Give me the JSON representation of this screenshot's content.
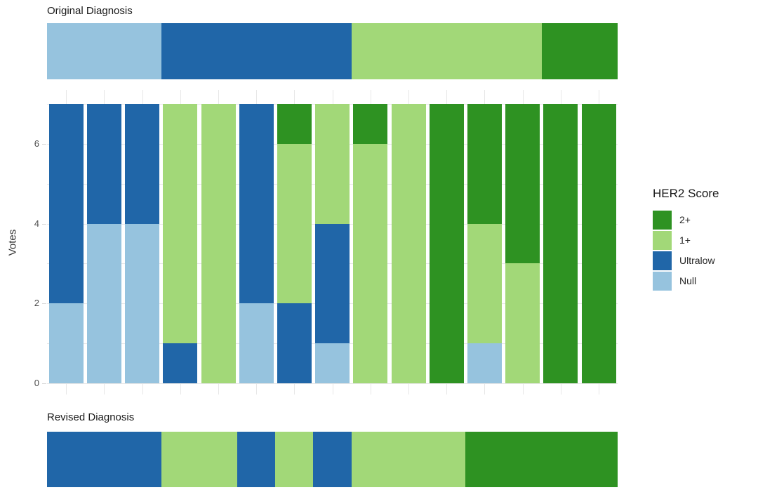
{
  "labels": {
    "original_diagnosis": "Original Diagnosis",
    "revised_diagnosis": "Revised Diagnosis"
  },
  "chart_data": {
    "type": "bar",
    "stacked": true,
    "title": "",
    "xlabel": "",
    "ylabel": "Votes",
    "ylim": [
      0,
      7
    ],
    "yticks": [
      0,
      2,
      4,
      6
    ],
    "grid": true,
    "legend_position": "right",
    "n_cases": 15,
    "votes_per_case": 7,
    "stack_order": [
      "Null",
      "Ultralow",
      "1+",
      "2+"
    ],
    "series": [
      {
        "name": "Null",
        "values": [
          2,
          4,
          4,
          0,
          0,
          2,
          0,
          1,
          0,
          0,
          0,
          1,
          0,
          0,
          0
        ]
      },
      {
        "name": "Ultralow",
        "values": [
          5,
          3,
          3,
          1,
          0,
          5,
          2,
          3,
          0,
          0,
          0,
          0,
          0,
          0,
          0
        ]
      },
      {
        "name": "1+",
        "values": [
          0,
          0,
          0,
          6,
          7,
          0,
          4,
          3,
          6,
          7,
          0,
          3,
          3,
          0,
          0
        ]
      },
      {
        "name": "2+",
        "values": [
          0,
          0,
          0,
          0,
          0,
          0,
          1,
          0,
          1,
          0,
          7,
          3,
          4,
          7,
          7
        ]
      }
    ],
    "original_diagnosis": [
      "Null",
      "Null",
      "Null",
      "Ultralow",
      "Ultralow",
      "Ultralow",
      "Ultralow",
      "Ultralow",
      "1+",
      "1+",
      "1+",
      "1+",
      "1+",
      "2+",
      "2+"
    ],
    "revised_diagnosis": [
      "Ultralow",
      "Ultralow",
      "Ultralow",
      "1+",
      "1+",
      "Ultralow",
      "1+",
      "Ultralow",
      "1+",
      "1+",
      "1+",
      "2+",
      "2+",
      "2+",
      "2+"
    ],
    "legend": {
      "title": "HER2 Score",
      "entries": [
        "2+",
        "1+",
        "Ultralow",
        "Null"
      ]
    },
    "colors": {
      "2+": "#2e9222",
      "1+": "#a2d878",
      "Ultralow": "#2066a8",
      "Null": "#96c3de"
    },
    "grid_color": "#e7e7e7",
    "axis_text_color": "#4d4d4d",
    "title_text_color": "#1a1a1a"
  }
}
